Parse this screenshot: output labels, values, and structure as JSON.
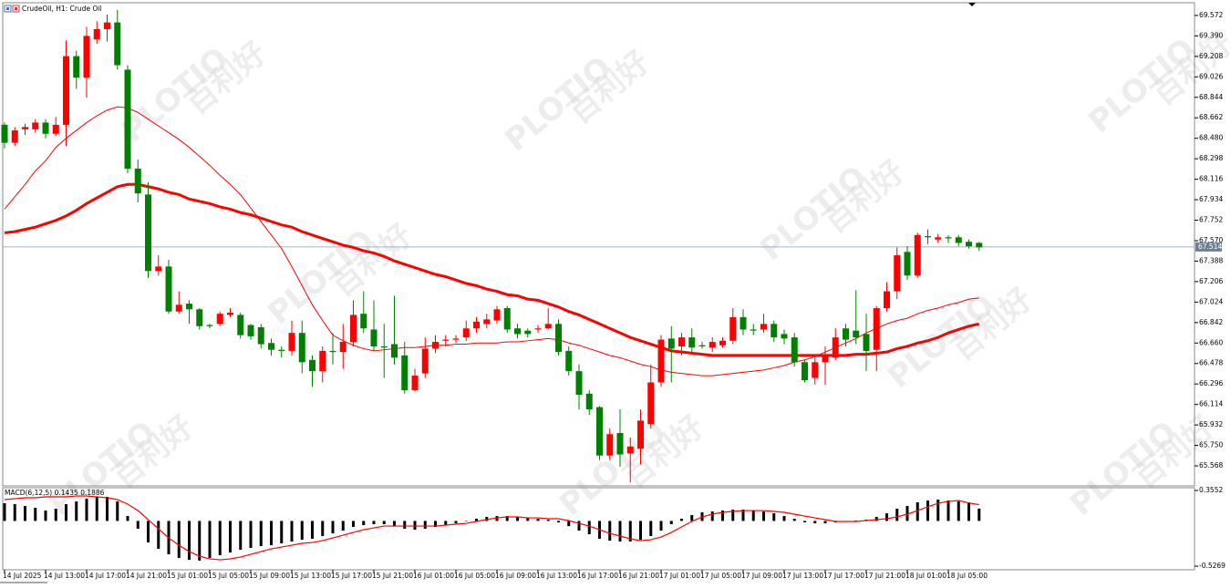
{
  "chart_data": {
    "type": "candlestick",
    "title": "CrudeOil, H1:  Crude Oil",
    "watermarks": [
      "PLOTIO",
      "百利好"
    ],
    "categories": [
      "14 Jul 2025",
      null,
      null,
      null,
      "14 Jul 13:00",
      null,
      null,
      null,
      "14 Jul 17:00",
      null,
      null,
      null,
      "14 Jul 21:00",
      null,
      null,
      null,
      "15 Jul 01:00",
      null,
      null,
      null,
      "15 Jul 05:00",
      null,
      null,
      null,
      "15 Jul 09:00",
      null,
      null,
      null,
      "15 Jul 13:00",
      null,
      null,
      null,
      "15 Jul 17:00",
      null,
      null,
      null,
      "15 Jul 21:00",
      null,
      null,
      null,
      "16 Jul 01:00",
      null,
      null,
      null,
      "16 Jul 05:00",
      null,
      null,
      null,
      "16 Jul 09:00",
      null,
      null,
      null,
      "16 Jul 13:00",
      null,
      null,
      null,
      "16 Jul 17:00",
      null,
      null,
      null,
      "16 Jul 21:00",
      null,
      null,
      null,
      "17 Jul 01:00",
      null,
      null,
      null,
      "17 Jul 05:00",
      null,
      null,
      null,
      "17 Jul 09:00",
      null,
      null,
      null,
      "17 Jul 13:00",
      null,
      null,
      null,
      "17 Jul 17:00",
      null,
      null,
      null,
      "17 Jul 21:00",
      null,
      null,
      null,
      "18 Jul 01:00",
      null,
      null,
      null,
      "18 Jul 05:00",
      null,
      null,
      null
    ],
    "open": [
      68.6,
      68.44,
      68.56,
      68.56,
      68.62,
      68.52,
      68.6,
      69.21,
      69.02,
      69.36,
      69.45,
      69.51,
      69.09,
      68.21,
      67.98,
      67.3,
      67.34,
      66.94,
      67.01,
      66.96,
      66.82,
      66.83,
      66.91,
      66.91,
      66.82,
      66.8,
      66.66,
      66.6,
      66.59,
      66.75,
      66.51,
      66.41,
      66.59,
      66.58,
      66.67,
      66.92,
      66.78,
      66.63,
      66.65,
      66.55,
      66.24,
      66.39,
      66.61,
      66.68,
      66.69,
      66.71,
      66.79,
      66.83,
      66.86,
      66.97,
      66.79,
      66.77,
      66.78,
      66.79,
      66.83,
      66.59,
      66.41,
      66.21,
      66.09,
      65.66,
      65.86,
      65.68,
      65.72,
      65.94,
      66.31,
      66.7,
      66.63,
      66.71,
      66.64,
      66.62,
      66.64,
      66.68,
      66.89,
      66.78,
      66.78,
      66.83,
      66.74,
      66.71,
      66.49,
      66.35,
      66.49,
      66.53,
      66.79,
      66.77,
      66.74,
      66.6,
      66.97,
      67.12,
      67.47,
      67.26,
      67.61,
      67.58,
      67.6,
      67.6,
      67.56,
      67.55
    ],
    "high": [
      68.62,
      68.58,
      68.61,
      68.65,
      68.65,
      68.67,
      69.35,
      69.26,
      69.47,
      69.52,
      69.58,
      69.62,
      69.13,
      68.29,
      68.09,
      67.44,
      67.4,
      67.12,
      67.04,
      66.97,
      66.83,
      66.94,
      66.97,
      66.93,
      66.83,
      66.83,
      66.7,
      66.63,
      66.86,
      66.86,
      66.55,
      66.63,
      66.75,
      66.83,
      67.04,
      67.12,
      67.04,
      66.83,
      67.08,
      66.67,
      66.43,
      66.71,
      66.73,
      66.73,
      66.73,
      66.86,
      66.89,
      66.92,
      66.99,
      66.99,
      66.83,
      66.79,
      66.82,
      66.97,
      66.87,
      66.63,
      66.47,
      66.24,
      66.1,
      65.9,
      66.07,
      65.82,
      66.07,
      66.47,
      66.73,
      66.81,
      66.75,
      66.79,
      66.67,
      66.71,
      66.71,
      66.97,
      66.96,
      66.83,
      66.92,
      66.86,
      66.78,
      66.75,
      66.51,
      66.55,
      66.63,
      66.79,
      66.83,
      67.13,
      66.92,
      66.99,
      67.2,
      67.51,
      67.52,
      67.64,
      67.67,
      67.63,
      67.62,
      67.62,
      67.58,
      67.56
    ],
    "low": [
      68.39,
      68.41,
      68.51,
      68.53,
      68.48,
      68.5,
      68.41,
      68.92,
      68.84,
      69.32,
      69.34,
      69.09,
      68.17,
      67.91,
      67.24,
      67.26,
      66.92,
      66.92,
      66.83,
      66.78,
      66.79,
      66.81,
      66.89,
      66.7,
      66.69,
      66.61,
      66.55,
      66.53,
      66.55,
      66.39,
      66.27,
      66.31,
      66.47,
      66.43,
      66.63,
      66.75,
      66.59,
      66.35,
      66.47,
      66.21,
      66.23,
      66.35,
      66.57,
      66.63,
      66.66,
      66.68,
      66.75,
      66.79,
      66.83,
      66.75,
      66.7,
      66.71,
      66.75,
      66.78,
      66.55,
      66.37,
      66.07,
      66.02,
      65.62,
      65.62,
      65.56,
      65.42,
      65.58,
      65.9,
      66.27,
      66.31,
      66.55,
      66.57,
      66.61,
      66.58,
      66.62,
      66.65,
      66.73,
      66.73,
      66.75,
      66.67,
      66.65,
      66.45,
      66.31,
      66.29,
      66.29,
      66.51,
      66.63,
      66.65,
      66.41,
      66.41,
      66.94,
      67.05,
      67.22,
      67.24,
      67.54,
      67.55,
      67.55,
      67.52,
      67.5,
      67.48
    ],
    "close": [
      68.44,
      68.55,
      68.58,
      68.62,
      68.52,
      68.6,
      69.21,
      69.02,
      69.39,
      69.45,
      69.51,
      69.13,
      68.21,
      67.99,
      67.3,
      67.34,
      66.94,
      67.0,
      66.96,
      66.81,
      66.81,
      66.92,
      66.93,
      66.73,
      66.72,
      66.65,
      66.6,
      66.59,
      66.75,
      66.49,
      66.41,
      66.59,
      66.58,
      66.67,
      66.91,
      66.79,
      66.63,
      66.62,
      66.53,
      66.24,
      66.37,
      66.61,
      66.67,
      66.69,
      66.7,
      66.79,
      66.85,
      66.87,
      66.96,
      66.78,
      66.74,
      66.74,
      66.79,
      66.83,
      66.58,
      66.41,
      66.2,
      66.07,
      65.66,
      65.85,
      65.67,
      65.74,
      65.97,
      66.31,
      66.69,
      66.61,
      66.71,
      66.62,
      66.63,
      66.67,
      66.68,
      66.89,
      66.78,
      66.77,
      66.83,
      66.71,
      66.7,
      66.49,
      66.33,
      66.49,
      66.55,
      66.71,
      66.69,
      66.71,
      66.59,
      66.97,
      67.12,
      67.44,
      67.26,
      67.62,
      67.6,
      67.6,
      67.59,
      67.55,
      67.52,
      67.51
    ],
    "up_color": "#ff0000",
    "down_color": "#008000",
    "overlays": [
      {
        "color": "#ff0000",
        "width": 1,
        "values": [
          67.85,
          67.96,
          68.07,
          68.19,
          68.28,
          68.4,
          68.48,
          68.55,
          68.62,
          68.68,
          68.73,
          68.76,
          68.75,
          68.71,
          68.65,
          68.59,
          68.53,
          68.47,
          68.4,
          68.32,
          68.24,
          68.15,
          68.07,
          67.98,
          67.86,
          67.74,
          67.62,
          67.5,
          67.34,
          67.17,
          67.0,
          66.86,
          66.73,
          66.68,
          66.64,
          66.61,
          66.59,
          66.6,
          66.61,
          66.62,
          66.62,
          66.63,
          66.64,
          66.64,
          66.65,
          66.65,
          66.66,
          66.66,
          66.66,
          66.67,
          66.67,
          66.68,
          66.69,
          66.7,
          66.69,
          66.66,
          66.64,
          66.61,
          66.58,
          66.55,
          66.53,
          66.5,
          66.47,
          66.45,
          66.42,
          66.4,
          66.39,
          66.38,
          66.37,
          66.37,
          66.38,
          66.39,
          66.4,
          66.41,
          66.42,
          66.44,
          66.46,
          66.49,
          66.51,
          66.54,
          66.58,
          66.62,
          66.66,
          66.7,
          66.75,
          66.79,
          66.83,
          66.86,
          66.88,
          66.92,
          66.95,
          66.97,
          67.0,
          67.02,
          67.05,
          67.06
        ]
      },
      {
        "color": "#ff0000",
        "width": 3,
        "values": [
          67.64,
          67.65,
          67.67,
          67.69,
          67.72,
          67.75,
          67.79,
          67.84,
          67.9,
          67.95,
          68.0,
          68.05,
          68.07,
          68.07,
          68.05,
          68.03,
          68.0,
          67.98,
          67.94,
          67.92,
          67.9,
          67.87,
          67.85,
          67.82,
          67.8,
          67.77,
          67.74,
          67.71,
          67.69,
          67.65,
          67.62,
          67.59,
          67.56,
          67.53,
          67.51,
          67.48,
          67.46,
          67.43,
          67.39,
          67.36,
          67.33,
          67.3,
          67.27,
          67.25,
          67.22,
          67.19,
          67.17,
          67.14,
          67.12,
          67.09,
          67.08,
          67.05,
          67.04,
          67.01,
          66.98,
          66.94,
          66.91,
          66.87,
          66.83,
          66.79,
          66.75,
          66.71,
          66.68,
          66.65,
          66.62,
          66.59,
          66.58,
          66.57,
          66.56,
          66.55,
          66.55,
          66.55,
          66.55,
          66.55,
          66.55,
          66.55,
          66.55,
          66.55,
          66.55,
          66.55,
          66.55,
          66.55,
          66.55,
          66.56,
          66.56,
          66.57,
          66.58,
          66.61,
          66.63,
          66.66,
          66.68,
          66.71,
          66.75,
          66.78,
          66.81,
          66.83
        ]
      }
    ],
    "ylim": [
      65.39,
      69.685
    ],
    "yticks": [
      65.568,
      {
        "value": 65.75,
        "label": "65.750"
      },
      65.932,
      66.114,
      66.296,
      66.478,
      {
        "value": 66.66,
        "label": "66.660"
      },
      66.842,
      67.024,
      67.206,
      67.388,
      {
        "value": 67.57,
        "label": "67.570"
      },
      67.752,
      67.934,
      68.116,
      68.298,
      {
        "value": 68.48,
        "label": "68.480"
      },
      68.662,
      68.844,
      69.026,
      69.208,
      {
        "value": 69.39,
        "label": "69.390"
      },
      69.572
    ],
    "last_price": 67.514,
    "macd": {
      "label": "MACD(6,12,5) 0.1435 0.1886",
      "bar_color": "#000000",
      "signal_color": "#ff0000",
      "histogram": [
        0.206,
        0.196,
        0.174,
        0.153,
        0.121,
        0.142,
        0.196,
        0.227,
        0.259,
        0.281,
        0.281,
        0.227,
        0.057,
        -0.091,
        -0.251,
        -0.325,
        -0.389,
        -0.432,
        -0.453,
        -0.463,
        -0.432,
        -0.4,
        -0.368,
        -0.336,
        -0.315,
        -0.293,
        -0.283,
        -0.261,
        -0.24,
        -0.219,
        -0.208,
        -0.176,
        -0.145,
        -0.113,
        -0.07,
        -0.049,
        -0.038,
        -0.038,
        -0.06,
        -0.091,
        -0.102,
        -0.091,
        -0.07,
        -0.049,
        -0.028,
        0.004,
        0.026,
        0.047,
        0.057,
        0.057,
        0.047,
        0.036,
        0.026,
        0.015,
        -0.017,
        -0.06,
        -0.113,
        -0.155,
        -0.208,
        -0.23,
        -0.24,
        -0.24,
        -0.219,
        -0.176,
        -0.113,
        -0.038,
        0.026,
        0.068,
        0.1,
        0.111,
        0.121,
        0.132,
        0.132,
        0.121,
        0.111,
        0.089,
        0.057,
        0.026,
        -0.017,
        -0.028,
        -0.028,
        -0.017,
        -0.006,
        0.004,
        0.015,
        0.047,
        0.089,
        0.142,
        0.174,
        0.217,
        0.238,
        0.249,
        0.238,
        0.227,
        0.217,
        0.144
      ],
      "signal": [
        0.249,
        0.259,
        0.27,
        0.27,
        0.281,
        0.281,
        0.281,
        0.291,
        0.291,
        0.281,
        0.27,
        0.249,
        0.196,
        0.121,
        0.015,
        -0.091,
        -0.198,
        -0.283,
        -0.357,
        -0.41,
        -0.442,
        -0.453,
        -0.442,
        -0.421,
        -0.389,
        -0.357,
        -0.325,
        -0.304,
        -0.283,
        -0.261,
        -0.251,
        -0.23,
        -0.198,
        -0.166,
        -0.134,
        -0.102,
        -0.081,
        -0.06,
        -0.06,
        -0.06,
        -0.06,
        -0.06,
        -0.06,
        -0.049,
        -0.038,
        -0.028,
        -0.006,
        0.015,
        0.036,
        0.047,
        0.047,
        0.036,
        0.036,
        0.026,
        0.026,
        0.004,
        -0.028,
        -0.06,
        -0.102,
        -0.145,
        -0.176,
        -0.208,
        -0.23,
        -0.219,
        -0.187,
        -0.134,
        -0.07,
        -0.006,
        0.047,
        0.079,
        0.1,
        0.111,
        0.121,
        0.121,
        0.121,
        0.111,
        0.1,
        0.079,
        0.057,
        0.036,
        0.015,
        -0.006,
        -0.006,
        -0.006,
        0.004,
        0.015,
        0.026,
        0.047,
        0.079,
        0.121,
        0.164,
        0.206,
        0.227,
        0.238,
        0.21,
        0.189
      ],
      "ylim": [
        -0.569,
        0.387
      ],
      "yticks": [
        0.3552,
        -0.5269
      ]
    }
  }
}
